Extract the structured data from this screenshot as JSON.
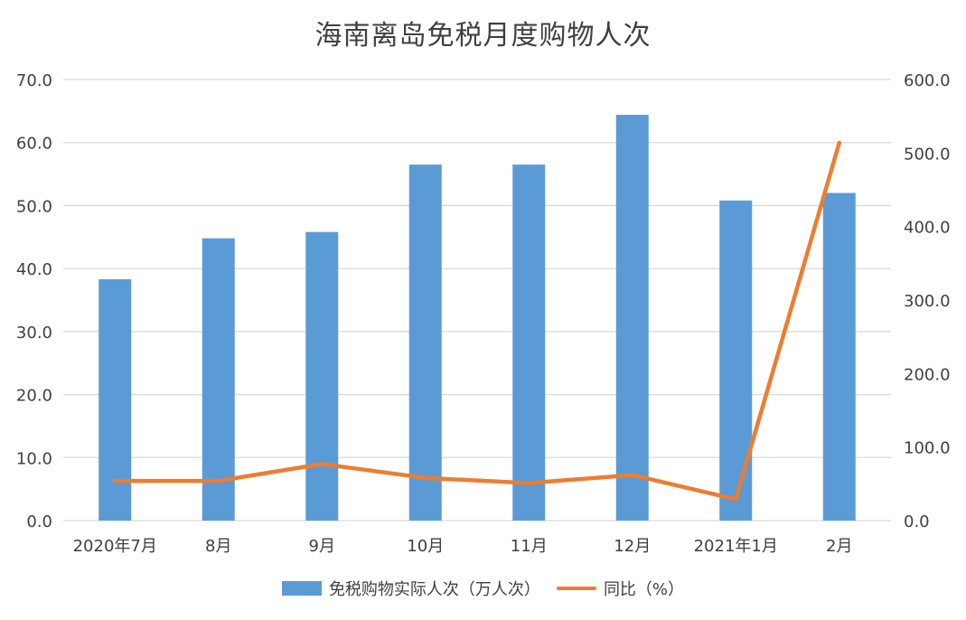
{
  "colors": {
    "bar": "#5B9BD5",
    "line": "#ED7D31",
    "grid": "#D9D9D9",
    "text": "#404040"
  },
  "chart_data": {
    "type": "bar",
    "title": "海南离岛免税月度购物人次",
    "categories": [
      "2020年7月",
      "8月",
      "9月",
      "10月",
      "11月",
      "12月",
      "2021年1月",
      "2月"
    ],
    "series": [
      {
        "name": "免税购物实际人次（万人次）",
        "type": "bar",
        "axis": "left",
        "values": [
          38.3,
          44.8,
          45.8,
          56.5,
          56.5,
          64.4,
          50.8,
          52.0
        ]
      },
      {
        "name": "同比（%）",
        "type": "line",
        "axis": "right",
        "values": [
          54,
          54,
          77,
          58,
          51,
          62,
          29,
          514
        ]
      }
    ],
    "y_left": {
      "min": 0,
      "max": 70,
      "ticks": [
        "0.0",
        "10.0",
        "20.0",
        "30.0",
        "40.0",
        "50.0",
        "60.0",
        "70.0"
      ]
    },
    "y_right": {
      "min": 0,
      "max": 600,
      "ticks": [
        "0.0",
        "100.0",
        "200.0",
        "300.0",
        "400.0",
        "500.0",
        "600.0"
      ]
    },
    "grid": true,
    "legend_position": "bottom"
  }
}
